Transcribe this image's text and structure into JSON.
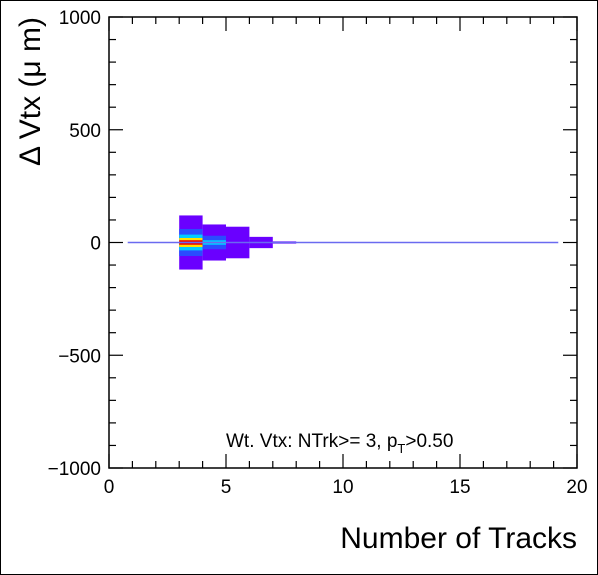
{
  "chart_data": {
    "type": "heatmap",
    "title": "",
    "xlabel": "Number of Tracks",
    "ylabel": "Δ Vtx (μ m)",
    "xlim": [
      0,
      20
    ],
    "ylim": [
      -1000,
      1000
    ],
    "x_ticks": [
      {
        "value": 0,
        "label": "0"
      },
      {
        "value": 5,
        "label": "5"
      },
      {
        "value": 10,
        "label": "10"
      },
      {
        "value": 15,
        "label": "15"
      },
      {
        "value": 20,
        "label": "20"
      }
    ],
    "y_ticks": [
      {
        "value": 1000,
        "label": "1000"
      },
      {
        "value": 500,
        "label": "500"
      },
      {
        "value": 0,
        "label": "0"
      },
      {
        "value": -500,
        "label": "−500"
      },
      {
        "value": -1000,
        "label": "−1000"
      }
    ],
    "annotation": {
      "prefix": "Wt. Vtx: NTrk>= 3, p",
      "sub": "T",
      "suffix": ">0.50"
    },
    "baseline": {
      "y": 0,
      "x_range": [
        0.8,
        19.2
      ],
      "color": "#6a6af0"
    },
    "colors": {
      "purple": "#6a00ff",
      "blue": "#2a4cff",
      "cyan": "#00ccff",
      "green": "#22dd66",
      "yellow": "#ffe000",
      "orange": "#ff8800",
      "red": "#ee0000"
    },
    "cells": [
      {
        "x": [
          3,
          4
        ],
        "y": [
          -120,
          120
        ],
        "color": "purple"
      },
      {
        "x": [
          3,
          4
        ],
        "y": [
          -60,
          60
        ],
        "color": "blue"
      },
      {
        "x": [
          3,
          4
        ],
        "y": [
          -35,
          35
        ],
        "color": "cyan"
      },
      {
        "x": [
          3,
          4
        ],
        "y": [
          -20,
          20
        ],
        "color": "yellow"
      },
      {
        "x": [
          3,
          4
        ],
        "y": [
          -10,
          10
        ],
        "color": "red"
      },
      {
        "x": [
          4,
          5
        ],
        "y": [
          -80,
          80
        ],
        "color": "purple"
      },
      {
        "x": [
          4,
          5
        ],
        "y": [
          -30,
          30
        ],
        "color": "blue"
      },
      {
        "x": [
          4,
          5
        ],
        "y": [
          -10,
          10
        ],
        "color": "cyan"
      },
      {
        "x": [
          5,
          6
        ],
        "y": [
          -70,
          70
        ],
        "color": "purple"
      },
      {
        "x": [
          6,
          7
        ],
        "y": [
          -25,
          25
        ],
        "color": "purple"
      },
      {
        "x": [
          7,
          8
        ],
        "y": [
          -5,
          5
        ],
        "color": "purple"
      }
    ]
  }
}
